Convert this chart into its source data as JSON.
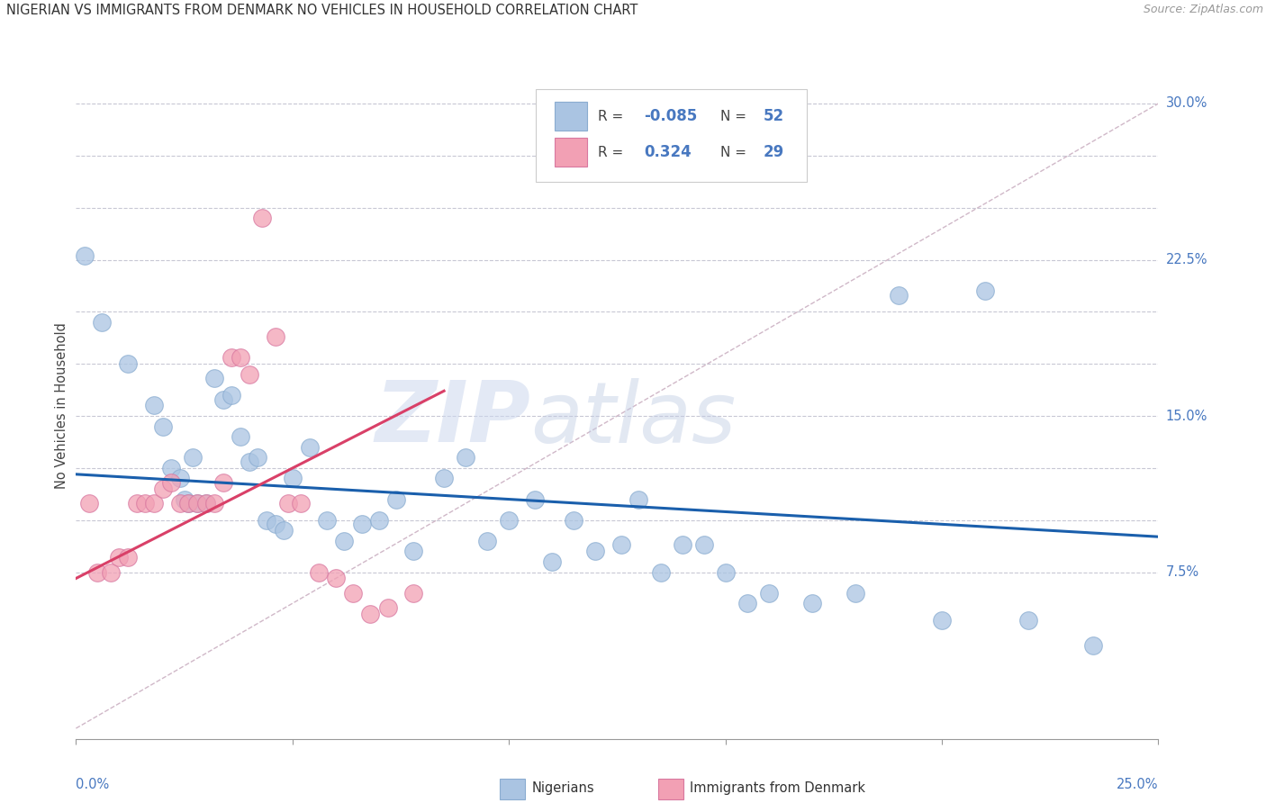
{
  "title": "NIGERIAN VS IMMIGRANTS FROM DENMARK NO VEHICLES IN HOUSEHOLD CORRELATION CHART",
  "source": "Source: ZipAtlas.com",
  "ylabel": "No Vehicles in Household",
  "xlim": [
    0.0,
    0.25
  ],
  "ylim": [
    -0.005,
    0.315
  ],
  "blue_color": "#aac4e2",
  "pink_color": "#f2a0b4",
  "blue_line_color": "#1a5fac",
  "pink_line_color": "#d94068",
  "diag_color": "#c8c0d0",
  "legend_label_blue": "Nigerians",
  "legend_label_pink": "Immigrants from Denmark",
  "watermark_zip": "ZIP",
  "watermark_atlas": "atlas",
  "ytick_positions": [
    0.075,
    0.1,
    0.125,
    0.15,
    0.175,
    0.2,
    0.225,
    0.25,
    0.275,
    0.3
  ],
  "ytick_labels": [
    "7.5%",
    "",
    "",
    "15.0%",
    "",
    "",
    "22.5%",
    "",
    "",
    "30.0%"
  ],
  "blue_points_x": [
    0.002,
    0.006,
    0.012,
    0.018,
    0.02,
    0.022,
    0.024,
    0.025,
    0.026,
    0.027,
    0.028,
    0.03,
    0.032,
    0.034,
    0.036,
    0.038,
    0.04,
    0.042,
    0.044,
    0.046,
    0.048,
    0.05,
    0.054,
    0.058,
    0.062,
    0.066,
    0.07,
    0.074,
    0.078,
    0.085,
    0.09,
    0.095,
    0.1,
    0.106,
    0.11,
    0.115,
    0.12,
    0.126,
    0.13,
    0.135,
    0.14,
    0.145,
    0.15,
    0.155,
    0.16,
    0.17,
    0.18,
    0.19,
    0.2,
    0.21,
    0.22,
    0.235
  ],
  "blue_points_y": [
    0.227,
    0.195,
    0.175,
    0.155,
    0.145,
    0.125,
    0.12,
    0.11,
    0.108,
    0.13,
    0.108,
    0.108,
    0.168,
    0.158,
    0.16,
    0.14,
    0.128,
    0.13,
    0.1,
    0.098,
    0.095,
    0.12,
    0.135,
    0.1,
    0.09,
    0.098,
    0.1,
    0.11,
    0.085,
    0.12,
    0.13,
    0.09,
    0.1,
    0.11,
    0.08,
    0.1,
    0.085,
    0.088,
    0.11,
    0.075,
    0.088,
    0.088,
    0.075,
    0.06,
    0.065,
    0.06,
    0.065,
    0.208,
    0.052,
    0.21,
    0.052,
    0.04
  ],
  "pink_points_x": [
    0.003,
    0.005,
    0.008,
    0.01,
    0.012,
    0.014,
    0.016,
    0.018,
    0.02,
    0.022,
    0.024,
    0.026,
    0.028,
    0.03,
    0.032,
    0.034,
    0.036,
    0.038,
    0.04,
    0.043,
    0.046,
    0.049,
    0.052,
    0.056,
    0.06,
    0.064,
    0.068,
    0.072,
    0.078
  ],
  "pink_points_y": [
    0.108,
    0.075,
    0.075,
    0.082,
    0.082,
    0.108,
    0.108,
    0.108,
    0.115,
    0.118,
    0.108,
    0.108,
    0.108,
    0.108,
    0.108,
    0.118,
    0.178,
    0.178,
    0.17,
    0.245,
    0.188,
    0.108,
    0.108,
    0.075,
    0.072,
    0.065,
    0.055,
    0.058,
    0.065
  ],
  "blue_trend_x": [
    0.0,
    0.25
  ],
  "blue_trend_y": [
    0.122,
    0.092
  ],
  "pink_trend_x": [
    0.0,
    0.085
  ],
  "pink_trend_y": [
    0.072,
    0.162
  ]
}
